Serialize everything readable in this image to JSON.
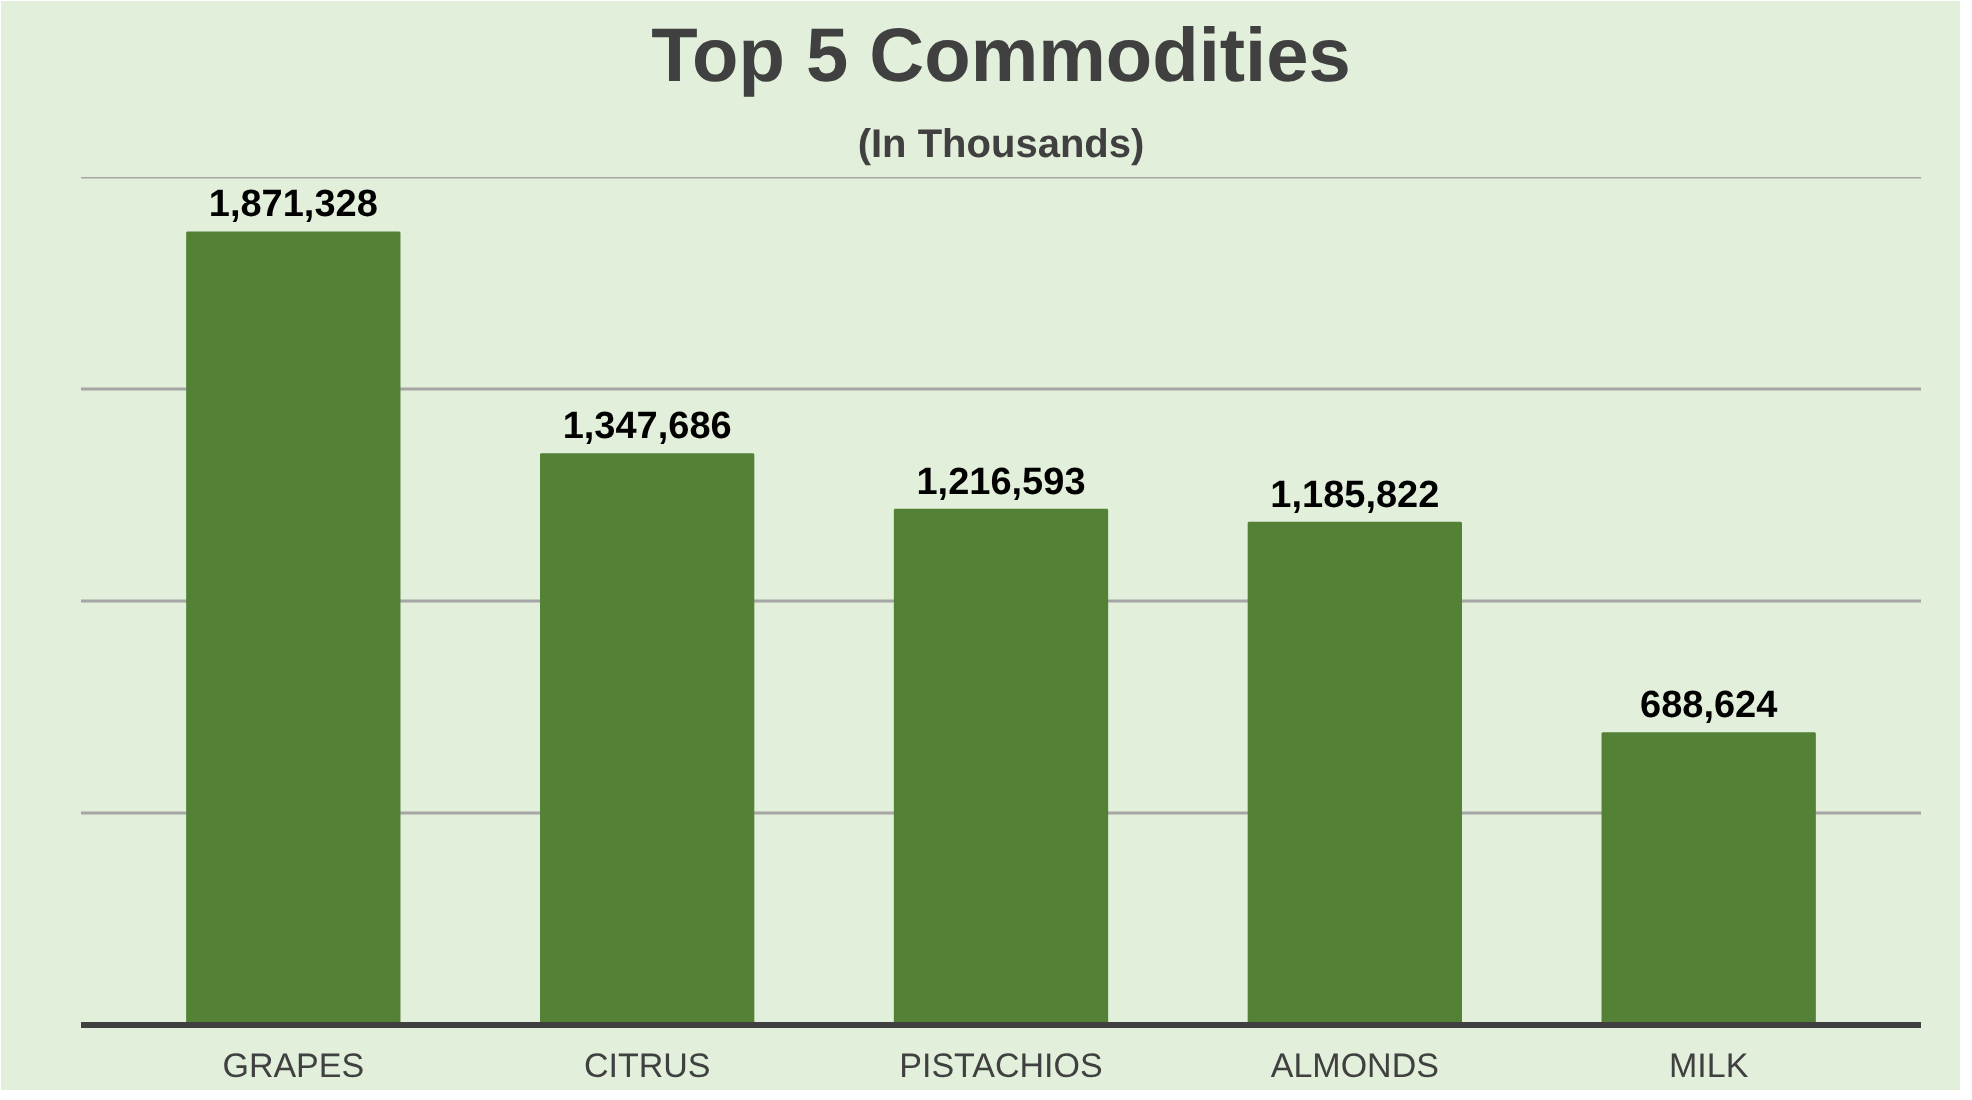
{
  "chart_data": {
    "type": "bar",
    "title": "Top 5 Commodities",
    "subtitle": "(In Thousands)",
    "categories": [
      "GRAPES",
      "CITRUS",
      "PISTACHIOS",
      "ALMONDS",
      "MILK"
    ],
    "values": [
      1871328,
      1347686,
      1216593,
      1185822,
      688624
    ],
    "color": "#538135",
    "value_labels": [
      "1,871,328",
      "1,347,686",
      "1,216,593",
      "1,185,822",
      "688,624"
    ],
    "tick_labels": "x",
    "grid": "y"
  }
}
